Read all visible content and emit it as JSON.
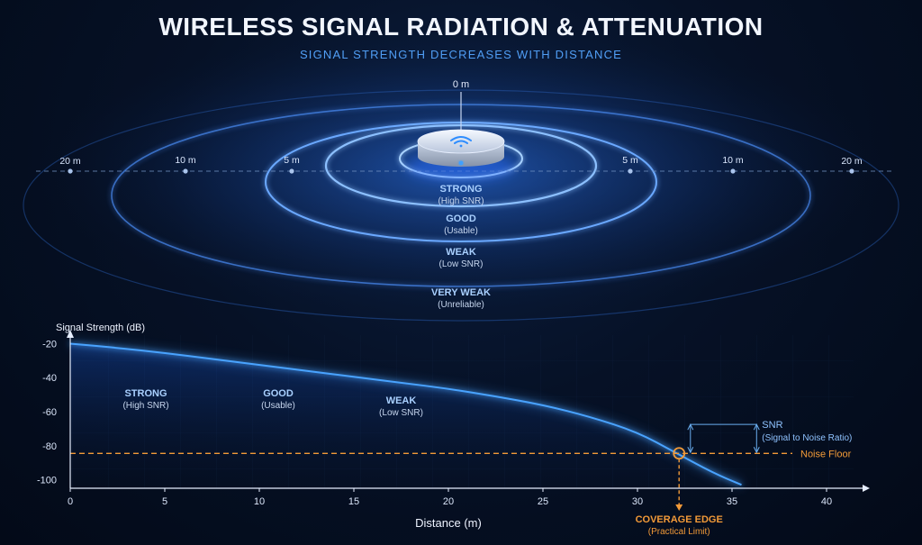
{
  "header": {
    "title": "WIRELESS SIGNAL RADIATION & ATTENUATION",
    "subtitle": "SIGNAL STRENGTH DECREASES WITH DISTANCE"
  },
  "radiation": {
    "center_label": "0 m",
    "distance_markers": [
      {
        "side": "left",
        "label": "20 m"
      },
      {
        "side": "left",
        "label": "10 m"
      },
      {
        "side": "left",
        "label": "5 m"
      },
      {
        "side": "right",
        "label": "5 m"
      },
      {
        "side": "right",
        "label": "10 m"
      },
      {
        "side": "right",
        "label": "20 m"
      }
    ],
    "zones": [
      {
        "name": "STRONG",
        "note": "(High SNR)"
      },
      {
        "name": "GOOD",
        "note": "(Usable)"
      },
      {
        "name": "WEAK",
        "note": "(Low SNR)"
      },
      {
        "name": "VERY WEAK",
        "note": "(Unreliable)"
      }
    ],
    "device_icon": "wifi-icon"
  },
  "chart_data": {
    "type": "line",
    "xlabel": "Distance (m)",
    "ylabel": "Signal Strength (dB)",
    "xlim": [
      0,
      42
    ],
    "ylim": [
      -105,
      -15
    ],
    "x_ticks": [
      0,
      5,
      10,
      15,
      20,
      25,
      30,
      35,
      40
    ],
    "y_ticks": [
      -20,
      -40,
      -60,
      -80,
      -100
    ],
    "series": [
      {
        "x": [
          0,
          2.5,
          5,
          7.5,
          10,
          12.5,
          15,
          17.5,
          20,
          22.5,
          25,
          27.5,
          30,
          32,
          34,
          35.5
        ],
        "y": [
          -20,
          -22.5,
          -25.5,
          -29,
          -32.5,
          -36,
          -39.5,
          -43,
          -46.5,
          -51,
          -56,
          -63,
          -72,
          -84,
          -96,
          -103
        ]
      }
    ],
    "zone_labels": [
      {
        "name": "STRONG",
        "note": "(High SNR)",
        "x": 4,
        "y": -58
      },
      {
        "name": "GOOD",
        "note": "(Usable)",
        "x": 11,
        "y": -58
      },
      {
        "name": "WEAK",
        "note": "(Low SNR)",
        "x": 17.5,
        "y": -62
      }
    ],
    "noise_floor": {
      "y": -84.5,
      "label": "Noise Floor"
    },
    "coverage_edge": {
      "x": 32.2,
      "y": -84.5,
      "label": "COVERAGE EDGE",
      "note": "(Practical Limit)"
    },
    "snr": {
      "label": "SNR",
      "note": "(Signal to Noise Ratio)",
      "x1": 32.8,
      "x2": 36.3,
      "y_top": -67.5,
      "y_bottom": -84.5
    },
    "colors": {
      "curve": "#4aa3ff",
      "noise_floor": "#f29a38",
      "axis": "#e6eeff",
      "snr": "#6aaef0"
    }
  }
}
